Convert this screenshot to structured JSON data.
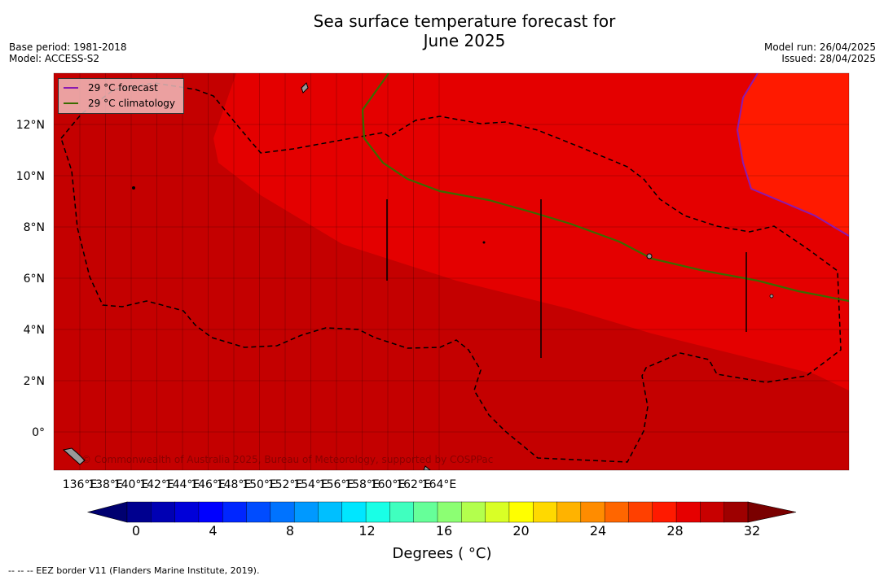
{
  "title_line1": "Sea surface temperature forecast for",
  "title_line2": "June 2025",
  "meta_left": [
    "Base period: 1981-2018",
    "Model: ACCESS-S2"
  ],
  "meta_right": [
    "Model run: 26/04/2025",
    "Issued: 28/04/2025"
  ],
  "lon_ticks": [
    "136°E",
    "138°E",
    "140°E",
    "142°E",
    "144°E",
    "146°E",
    "148°E",
    "150°E",
    "152°E",
    "154°E",
    "156°E",
    "158°E",
    "160°E",
    "162°E",
    "164°E"
  ],
  "lat_ticks": [
    "12°N",
    "10°N",
    "8°N",
    "6°N",
    "4°N",
    "2°N",
    "0°"
  ],
  "legend": {
    "forecast_label": "29 °C  forecast",
    "climatology_label": "29 °C  climatology",
    "forecast_color": "#8b1ab0",
    "climatology_color": "#3a6b00"
  },
  "copyright": "© Commonwealth of Australia 2025, Bureau of Meteorology, supported by COSPPac",
  "colorbar": {
    "ticks": [
      "0",
      "4",
      "8",
      "12",
      "16",
      "20",
      "24",
      "28",
      "32"
    ],
    "label": "Degrees ( °C)",
    "colors": [
      "#00008f",
      "#0000b3",
      "#0000d9",
      "#0000ff",
      "#0026ff",
      "#004cff",
      "#0073ff",
      "#0099ff",
      "#00bfff",
      "#00e6ff",
      "#19ffe6",
      "#40ffbf",
      "#66ff99",
      "#8cff73",
      "#b3ff4d",
      "#d9ff26",
      "#ffff00",
      "#ffd900",
      "#ffb300",
      "#ff8c00",
      "#ff6600",
      "#ff4000",
      "#ff1a00",
      "#e60000",
      "#c80000",
      "#9e0000"
    ],
    "low_color": "#000070",
    "high_color": "#7a0000"
  },
  "map_colors": {
    "warm_ocean": "#c40000",
    "warmer_ocean": "#e40000",
    "hottest_ocean": "#ff1a00"
  },
  "footnote": "--  --  -- EEZ border V11 (Flanders Marine Institute, 2019)."
}
